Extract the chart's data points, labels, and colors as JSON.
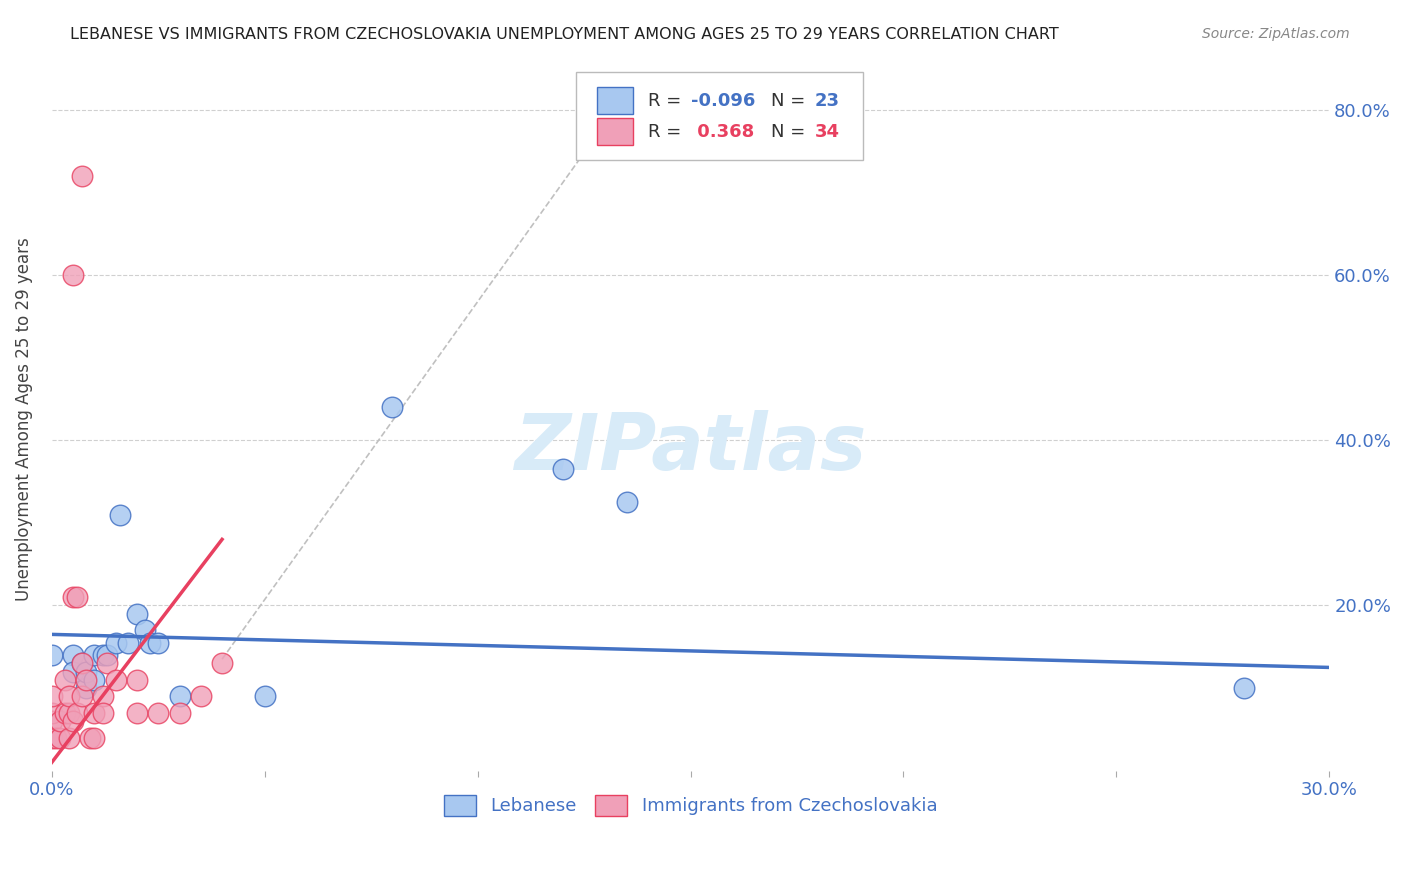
{
  "title": "LEBANESE VS IMMIGRANTS FROM CZECHOSLOVAKIA UNEMPLOYMENT AMONG AGES 25 TO 29 YEARS CORRELATION CHART",
  "source": "Source: ZipAtlas.com",
  "ylabel": "Unemployment Among Ages 25 to 29 years",
  "xlim": [
    0.0,
    0.3
  ],
  "ylim": [
    0.0,
    0.85
  ],
  "x_ticks": [
    0.0,
    0.05,
    0.1,
    0.15,
    0.2,
    0.25,
    0.3
  ],
  "x_tick_labels": [
    "0.0%",
    "",
    "",
    "",
    "",
    "",
    "30.0%"
  ],
  "y_ticks": [
    0.0,
    0.2,
    0.4,
    0.6,
    0.8
  ],
  "y_tick_labels_right": [
    "",
    "20.0%",
    "40.0%",
    "60.0%",
    "80.0%"
  ],
  "color_blue": "#A8C8F0",
  "color_pink": "#F0A0B8",
  "color_blue_line": "#4472C4",
  "color_pink_line": "#E84060",
  "watermark_color": "#D8EBF8",
  "legend_label1": "Lebanese",
  "legend_label2": "Immigrants from Czechoslovakia",
  "blue_points": [
    [
      0.0,
      0.14
    ],
    [
      0.005,
      0.14
    ],
    [
      0.005,
      0.12
    ],
    [
      0.007,
      0.13
    ],
    [
      0.008,
      0.1
    ],
    [
      0.008,
      0.12
    ],
    [
      0.01,
      0.14
    ],
    [
      0.01,
      0.11
    ],
    [
      0.012,
      0.14
    ],
    [
      0.013,
      0.14
    ],
    [
      0.015,
      0.155
    ],
    [
      0.016,
      0.31
    ],
    [
      0.018,
      0.155
    ],
    [
      0.02,
      0.19
    ],
    [
      0.022,
      0.17
    ],
    [
      0.023,
      0.155
    ],
    [
      0.025,
      0.155
    ],
    [
      0.03,
      0.09
    ],
    [
      0.05,
      0.09
    ],
    [
      0.08,
      0.44
    ],
    [
      0.12,
      0.365
    ],
    [
      0.135,
      0.325
    ],
    [
      0.28,
      0.1
    ]
  ],
  "pink_points": [
    [
      0.0,
      0.04
    ],
    [
      0.0,
      0.06
    ],
    [
      0.0,
      0.07
    ],
    [
      0.0,
      0.09
    ],
    [
      0.001,
      0.04
    ],
    [
      0.002,
      0.04
    ],
    [
      0.002,
      0.06
    ],
    [
      0.003,
      0.07
    ],
    [
      0.003,
      0.11
    ],
    [
      0.004,
      0.04
    ],
    [
      0.004,
      0.07
    ],
    [
      0.004,
      0.09
    ],
    [
      0.005,
      0.06
    ],
    [
      0.005,
      0.21
    ],
    [
      0.006,
      0.21
    ],
    [
      0.006,
      0.07
    ],
    [
      0.007,
      0.09
    ],
    [
      0.007,
      0.13
    ],
    [
      0.008,
      0.11
    ],
    [
      0.009,
      0.04
    ],
    [
      0.01,
      0.04
    ],
    [
      0.01,
      0.07
    ],
    [
      0.012,
      0.09
    ],
    [
      0.012,
      0.07
    ],
    [
      0.013,
      0.13
    ],
    [
      0.015,
      0.11
    ],
    [
      0.02,
      0.07
    ],
    [
      0.02,
      0.11
    ],
    [
      0.025,
      0.07
    ],
    [
      0.03,
      0.07
    ],
    [
      0.035,
      0.09
    ],
    [
      0.04,
      0.13
    ],
    [
      0.005,
      0.6
    ],
    [
      0.007,
      0.72
    ]
  ],
  "blue_line_x": [
    0.0,
    0.3
  ],
  "blue_line_y": [
    0.165,
    0.125
  ],
  "pink_line_x": [
    0.0,
    0.04
  ],
  "pink_line_y": [
    0.01,
    0.28
  ],
  "dashed_line_x": [
    0.04,
    0.135
  ],
  "dashed_line_y": [
    0.135,
    0.82
  ]
}
